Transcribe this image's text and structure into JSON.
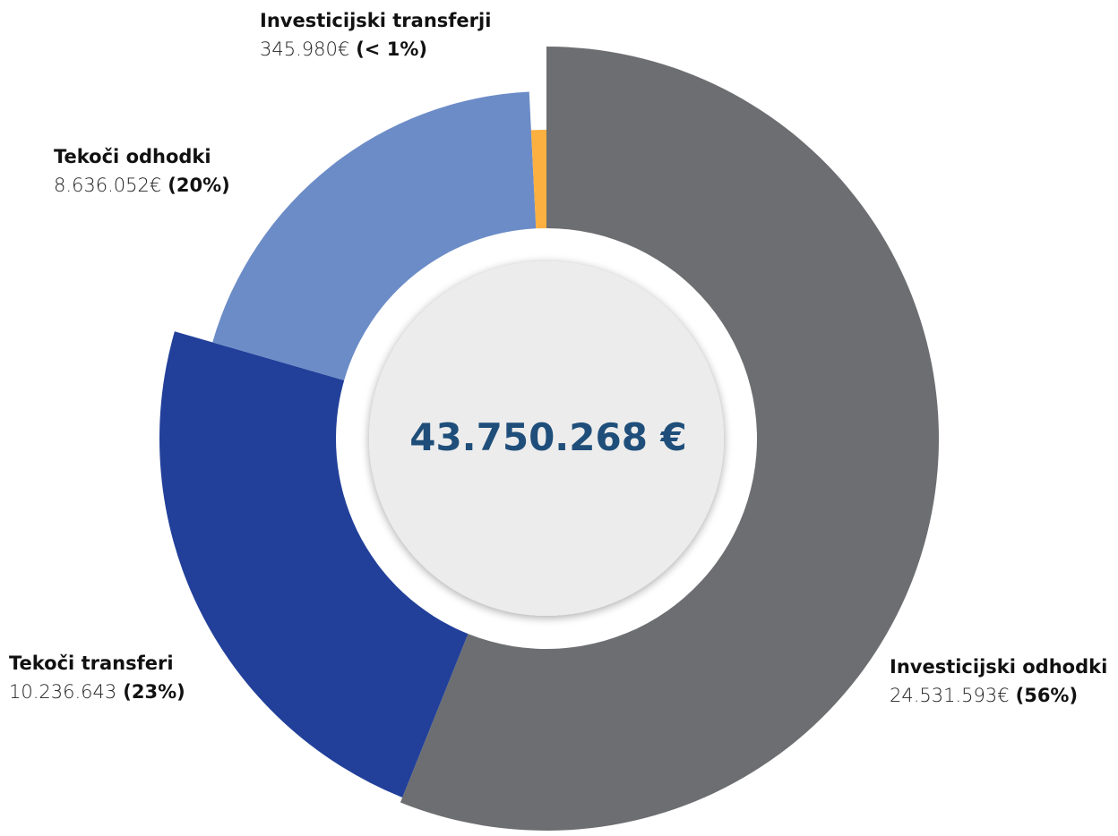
{
  "chart_data": {
    "type": "pie",
    "categories": [
      "Investicijski odhodki",
      "Tekoči transferi",
      "Tekoči odhodki",
      "Investicijski transferji"
    ],
    "values": [
      24531593,
      10236643,
      8636052,
      345980
    ],
    "value_labels": [
      "24.531.593€",
      "10.236.643",
      "8.636.052€",
      "345.980€"
    ],
    "percents": [
      56,
      23,
      20,
      0.8
    ],
    "percent_labels": [
      "(56%)",
      "(23%)",
      "(20%)",
      "(< 1%)"
    ],
    "colors": [
      "#6d6e71",
      "#22409a",
      "#6c8cc7",
      "#fbb040"
    ],
    "total": {
      "value": 43750268,
      "label": "43.750.268 €"
    }
  }
}
